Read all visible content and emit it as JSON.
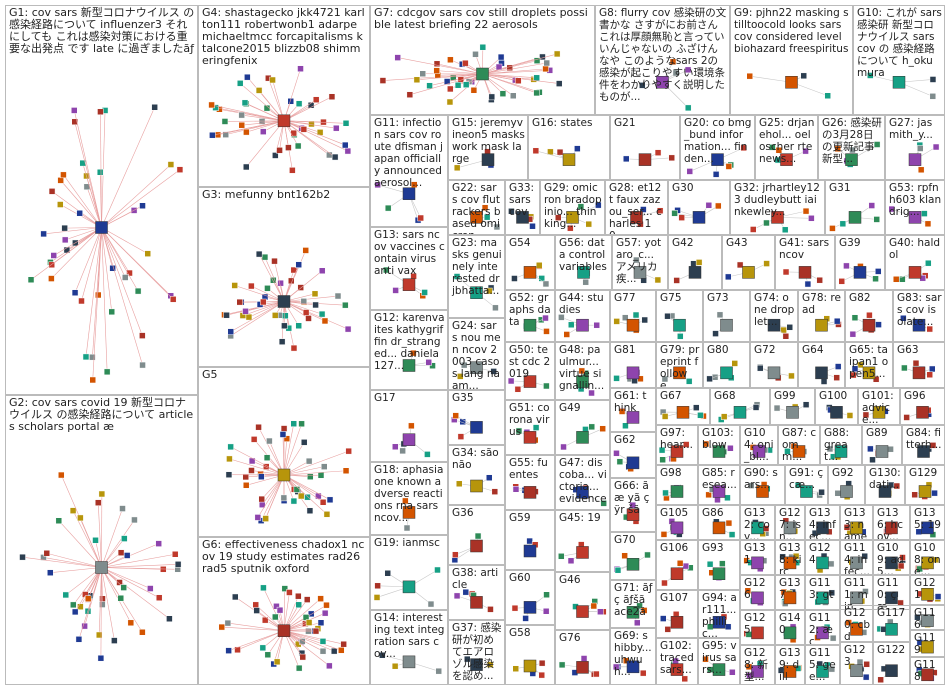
{
  "groups": [
    {
      "label": "G1: cov sars 新型コロナウイルス の感染経路について influenzer3 それにしても これは感染対策における重要な出発点 です late に過ぎましたãƒ"
    },
    {
      "label": "G4: shastagecko jkk4721 karlton111 robertwonb1 adarpe michaeltmcc forcapitalisms ktalcone2015 blizzb08 shimmeringfenix"
    },
    {
      "label": "G7: cdcgov sars cov still droplets possible latest briefing 22 aerosols"
    },
    {
      "label": "G8: flurry cov 感染研の文書かな さすがにお前さん これは厚顔無恥と言っていいんじゃないの ふざけんなや このようなsars 2の感染が起こりやすい環境条件をわかりやすく説明したものが..."
    },
    {
      "label": "G9: pjhn22 masking stilltoocold looks sars cov considered level biohazard freespiritus"
    },
    {
      "label": "G10: これが sars 感染研 新型コロナウイルス sars cov の 感染経路について h_okumura"
    },
    {
      "label": "G2: cov sars covid 19 新型コロナウイルス の感染経路について articles scholars portal æ"
    },
    {
      "label": "G3: mefunny bnt162b2"
    },
    {
      "label": "G5"
    },
    {
      "label": "G6: effectiveness chadox1 ncov 19 study estimates rad26 rad5 sputnik oxford"
    },
    {
      "label": "G11: infection sars cov route dfisman japan officially announced aerosol..."
    },
    {
      "label": "G13: sars ncov vaccines contain virus anti vax"
    },
    {
      "label": "G12: karenvaites kathygriffin dr_stranged... daniela127..."
    },
    {
      "label": "G17"
    },
    {
      "label": "G18: aphasia one known adverse reactions rna sars ncov..."
    },
    {
      "label": "G19: ianmsc"
    },
    {
      "label": "G14: interesting text integration sars cov..."
    },
    {
      "label": "G15: jeremyvineon5 masks work mask large"
    },
    {
      "label": "G16: states"
    },
    {
      "label": "G21"
    },
    {
      "label": "G20: co bmg_bund information... finden..."
    },
    {
      "label": "G25: drjanehol... oeloscher rtenews..."
    },
    {
      "label": "G26: 感染研の3月28日の更新記事 新型..."
    },
    {
      "label": "G27: jasmith_y..."
    },
    {
      "label": "G22: sars cov flutrackers based omicron..."
    },
    {
      "label": "G23: masks genuinely interested drjbhatta..."
    },
    {
      "label": "G24: sars nou men ncov 2003 casos lang naam..."
    },
    {
      "label": "G33: sars cov"
    },
    {
      "label": "G29: omicron bradopinio... thinking..."
    },
    {
      "label": "G28: et12t faux zazou_ser... charles 10..."
    },
    {
      "label": "G30"
    },
    {
      "label": "G32: jrhartley123 dudleybutt iainkewley..."
    },
    {
      "label": "G31"
    },
    {
      "label": "G53: rpfnh603 klandrig..."
    },
    {
      "label": "G54"
    },
    {
      "label": "G56: data control variables"
    },
    {
      "label": "G57: yotaro_c... アメリカ疾..."
    },
    {
      "label": "G42"
    },
    {
      "label": "G43"
    },
    {
      "label": "G41: sars ncov"
    },
    {
      "label": "G39"
    },
    {
      "label": "G40: haldol"
    },
    {
      "label": "G52: graphs data"
    },
    {
      "label": "G44: studies"
    },
    {
      "label": "G77"
    },
    {
      "label": "G75"
    },
    {
      "label": "G73"
    },
    {
      "label": "G74: one droplet..."
    },
    {
      "label": "G78: read"
    },
    {
      "label": "G82"
    },
    {
      "label": "G83: sars cov isolate..."
    },
    {
      "label": "G50: test cdc 2019"
    },
    {
      "label": "G48: paulmur... virtue signallin..."
    },
    {
      "label": "G81"
    },
    {
      "label": "G79: preprint followe..."
    },
    {
      "label": "G80"
    },
    {
      "label": "G72"
    },
    {
      "label": "G64"
    },
    {
      "label": "G65: taipan1 open5..."
    },
    {
      "label": "G63"
    },
    {
      "label": "G35"
    },
    {
      "label": "G51: corona virus"
    },
    {
      "label": "G49"
    },
    {
      "label": "G61: think"
    },
    {
      "label": "G67"
    },
    {
      "label": "G68"
    },
    {
      "label": "G99"
    },
    {
      "label": "G100"
    },
    {
      "label": "G101: advice..."
    },
    {
      "label": "G96"
    },
    {
      "label": "G62"
    },
    {
      "label": "G97: hear..."
    },
    {
      "label": "G103: blow"
    },
    {
      "label": "G104: oni_bl..."
    },
    {
      "label": "G87: comm..."
    },
    {
      "label": "G88: great..."
    },
    {
      "label": "G89"
    },
    {
      "label": "G84: fitterh..."
    },
    {
      "label": "G34: são não"
    },
    {
      "label": "G55: fuentes"
    },
    {
      "label": "G47: discoba... victoria... evidence"
    },
    {
      "label": "G66: ã æ yã ç ÿr šã"
    },
    {
      "label": "G98"
    },
    {
      "label": "G85: resea..."
    },
    {
      "label": "G90: sars..."
    },
    {
      "label": "G91: ç cæ..."
    },
    {
      "label": "G92"
    },
    {
      "label": "G130: dati..."
    },
    {
      "label": "G129"
    },
    {
      "label": "G36"
    },
    {
      "label": "G59"
    },
    {
      "label": "G45: 19"
    },
    {
      "label": "G70"
    },
    {
      "label": "G105"
    },
    {
      "label": "G86"
    },
    {
      "label": "G132: cov..."
    },
    {
      "label": "G127: isn..."
    },
    {
      "label": "G134: infec..."
    },
    {
      "label": "G133: name"
    },
    {
      "label": "G136: hcov..."
    },
    {
      "label": "G135: 19"
    },
    {
      "label": "G106"
    },
    {
      "label": "G93"
    },
    {
      "label": "G131"
    },
    {
      "label": "G138: kirch..."
    },
    {
      "label": "G124"
    },
    {
      "label": "G114: infec..."
    },
    {
      "label": "G109: ad5..."
    },
    {
      "label": "G108: one..."
    },
    {
      "label": "G38: article"
    },
    {
      "label": "G60"
    },
    {
      "label": "G46"
    },
    {
      "label": "G71: ãƒ ç ãƒšã ace2ã"
    },
    {
      "label": "G126"
    },
    {
      "label": "G137"
    },
    {
      "label": "G113: gt"
    },
    {
      "label": "G111: mine... ç æ..."
    },
    {
      "label": "G110: ç æ..."
    },
    {
      "label": "G121"
    },
    {
      "label": "G107"
    },
    {
      "label": "G94: ar111... phillic..."
    },
    {
      "label": "G125"
    },
    {
      "label": "G140"
    },
    {
      "label": "G112: æ ç"
    },
    {
      "label": "G120: cbd"
    },
    {
      "label": "G117"
    },
    {
      "label": "G116"
    },
    {
      "label": "G37: 感染研が初めてエアロゾル感染を認め..."
    },
    {
      "label": "G58"
    },
    {
      "label": "G76"
    },
    {
      "label": "G69: shibby... uhwuh..."
    },
    {
      "label": "G102: traced sars..."
    },
    {
      "label": "G95: virus sars..."
    },
    {
      "label": "G128: 新型..."
    },
    {
      "label": "G139: dillu..."
    },
    {
      "label": "G115: gee..."
    },
    {
      "label": "G123"
    },
    {
      "label": "G122"
    },
    {
      "label": "G119"
    },
    {
      "label": "G118"
    }
  ]
}
